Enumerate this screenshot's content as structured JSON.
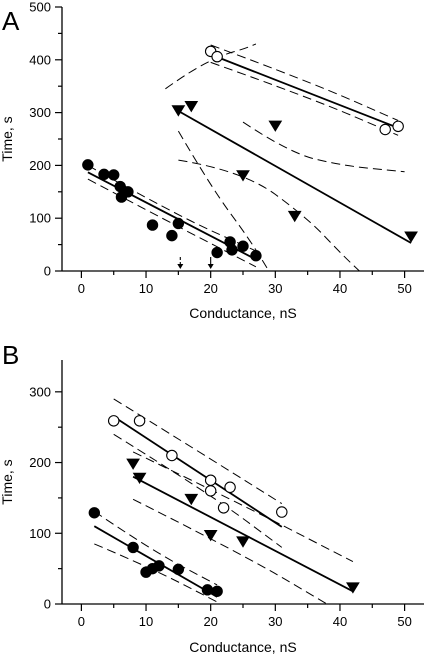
{
  "chart_data": [
    {
      "panel_label": "A",
      "type": "scatter",
      "xlabel": "Conductance, nS",
      "ylabel": "Time, s",
      "xlim": [
        -3,
        53
      ],
      "ylim": [
        0,
        500
      ],
      "xticks": [
        0,
        10,
        20,
        30,
        40,
        50
      ],
      "yticks": [
        0,
        100,
        200,
        300,
        400,
        500
      ],
      "series": [
        {
          "marker": "filled-circle",
          "points": [
            [
              1,
              201
            ],
            [
              3.5,
              183
            ],
            [
              5,
              182
            ],
            [
              6,
              160
            ],
            [
              6.2,
              140
            ],
            [
              7.2,
              150
            ],
            [
              11,
              87
            ],
            [
              14,
              67
            ],
            [
              15,
              90
            ],
            [
              21,
              35
            ],
            [
              23,
              55
            ],
            [
              23.3,
              40
            ],
            [
              25,
              47
            ],
            [
              27,
              29
            ]
          ],
          "fit": [
            [
              1,
              187
            ],
            [
              27,
              22
            ]
          ],
          "ci_upper": [
            [
              1,
              200
            ],
            [
              14,
              110
            ],
            [
              27,
              38
            ]
          ],
          "ci_lower": [
            [
              1,
              174
            ],
            [
              14,
              90
            ],
            [
              27,
              8
            ]
          ]
        },
        {
          "marker": "filled-triangle-down",
          "points": [
            [
              15,
              305
            ],
            [
              17,
              313
            ],
            [
              30,
              276
            ],
            [
              25,
              182
            ],
            [
              33,
              105
            ],
            [
              51,
              66
            ]
          ],
          "fit": [
            [
              15,
              303
            ],
            [
              51,
              53
            ]
          ],
          "ci_upper": [
            [
              13,
              345
            ],
            [
              17,
              380
            ],
            [
              22,
              410
            ],
            [
              25,
              420
            ],
            [
              27,
              430
            ]
          ],
          "ci_lower": [
            [
              15,
              210
            ],
            [
              25,
              190
            ],
            [
              35,
              100
            ],
            [
              40,
              35
            ],
            [
              43,
              0
            ]
          ],
          "ci_upper_right": [
            [
              25,
              282
            ],
            [
              32,
              225
            ],
            [
              40,
              200
            ],
            [
              50,
              188
            ]
          ],
          "ci_lower_left": [
            [
              15,
              265
            ],
            [
              20,
              160
            ],
            [
              26,
              60
            ],
            [
              29,
              0
            ]
          ]
        },
        {
          "marker": "open-circle",
          "points": [
            [
              20,
              416
            ],
            [
              21,
              406
            ],
            [
              47,
              268
            ],
            [
              49,
              274
            ]
          ],
          "fit": [
            [
              20,
              410
            ],
            [
              49,
              271
            ]
          ],
          "ci_upper": [
            [
              20,
              428
            ],
            [
              35,
              360
            ],
            [
              49,
              285
            ]
          ],
          "ci_lower": [
            [
              20,
              395
            ],
            [
              35,
              330
            ],
            [
              49,
              257
            ]
          ]
        }
      ],
      "arrows": [
        {
          "x": 15.3,
          "style": "dashed"
        },
        {
          "x": 20,
          "style": "solid"
        }
      ]
    },
    {
      "panel_label": "B",
      "type": "scatter",
      "xlabel": "Conductance, nS",
      "ylabel": "Time, s",
      "xlim": [
        -3,
        53
      ],
      "ylim": [
        0,
        345
      ],
      "xticks": [
        0,
        10,
        20,
        30,
        40,
        50
      ],
      "yticks": [
        0,
        100,
        200,
        300
      ],
      "series": [
        {
          "marker": "filled-circle",
          "points": [
            [
              2,
              129
            ],
            [
              8,
              80
            ],
            [
              10,
              45
            ],
            [
              11,
              50
            ],
            [
              12,
              54
            ],
            [
              15,
              49
            ],
            [
              19.5,
              20
            ],
            [
              21,
              18
            ]
          ],
          "fit": [
            [
              2,
              110
            ],
            [
              21,
              10
            ]
          ],
          "ci_upper": [
            [
              2,
              131
            ],
            [
              11,
              75
            ],
            [
              21,
              27
            ]
          ],
          "ci_lower": [
            [
              2,
              85
            ],
            [
              11,
              50
            ],
            [
              21,
              3
            ]
          ]
        },
        {
          "marker": "filled-triangle-down",
          "points": [
            [
              8,
              199
            ],
            [
              9,
              179
            ],
            [
              17,
              149
            ],
            [
              20,
              98
            ],
            [
              25,
              89
            ],
            [
              42,
              24
            ]
          ],
          "fit": [
            [
              8,
              180
            ],
            [
              42,
              18
            ]
          ],
          "ci_upper": [
            [
              8,
              215
            ],
            [
              25,
              140
            ],
            [
              42,
              60
            ]
          ],
          "ci_lower": [
            [
              8,
              148
            ],
            [
              25,
              70
            ],
            [
              38,
              0
            ]
          ]
        },
        {
          "marker": "open-circle",
          "points": [
            [
              5,
              259
            ],
            [
              9,
              259
            ],
            [
              14,
              210
            ],
            [
              20,
              175
            ],
            [
              20,
              160
            ],
            [
              22,
              136
            ],
            [
              23,
              165
            ],
            [
              31,
              130
            ]
          ],
          "fit": [
            [
              5,
              265
            ],
            [
              31,
              109
            ]
          ],
          "ci_upper": [
            [
              5,
              290
            ],
            [
              20,
              205
            ],
            [
              31,
              142
            ]
          ],
          "ci_lower": [
            [
              5,
              240
            ],
            [
              20,
              155
            ],
            [
              31,
              80
            ]
          ]
        }
      ]
    }
  ]
}
